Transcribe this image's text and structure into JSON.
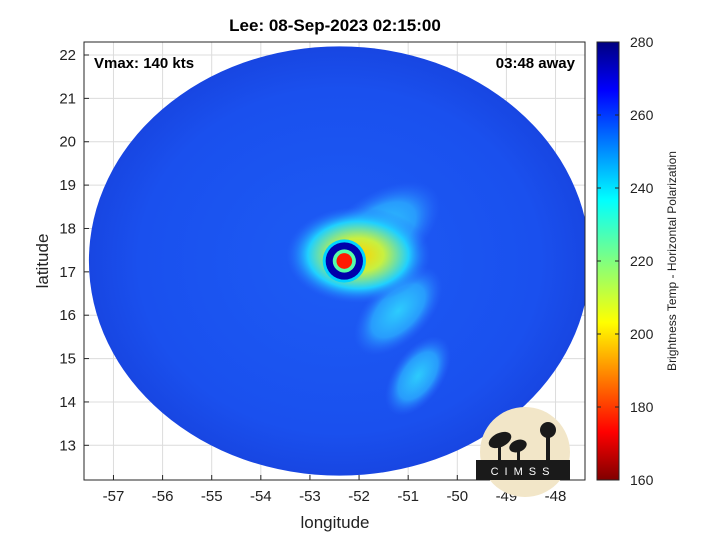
{
  "chart_data": {
    "type": "heatmap",
    "title": "Lee: 08-Sep-2023 02:15:00",
    "xlabel": "longitude",
    "ylabel": "latitude",
    "xlim": [
      -57.6,
      -47.4
    ],
    "ylim": [
      12.2,
      22.3
    ],
    "xticks": [
      -57,
      -56,
      -55,
      -54,
      -53,
      -52,
      -51,
      -50,
      -49,
      -48
    ],
    "yticks": [
      13,
      14,
      15,
      16,
      17,
      18,
      19,
      20,
      21,
      22
    ],
    "grid": true,
    "annotations": {
      "vmax": "Vmax: 140 kts",
      "time_away": "03:48 away"
    },
    "storm_center": {
      "lon": -52.3,
      "lat": 17.25
    },
    "eyewall_radius_deg": 0.38,
    "swath": {
      "center_lon": -52.4,
      "center_lat": 17.25,
      "radius_lon": 5.1,
      "radius_lat": 4.95
    },
    "colorbar": {
      "label": "Brightness Temp - Horizontal Polarization",
      "min": 160,
      "max": 280,
      "ticks": [
        160,
        180,
        200,
        220,
        240,
        260,
        280
      ],
      "colormap": "jet"
    },
    "background_value": 262,
    "features": [
      {
        "kind": "eyewall",
        "lon": -52.3,
        "lat": 17.25,
        "value": 165
      },
      {
        "kind": "eye",
        "lon": -52.3,
        "lat": 17.25,
        "value": 262
      },
      {
        "kind": "inner-ring",
        "lon": -52.3,
        "lat": 17.3,
        "value": 215
      },
      {
        "kind": "rainband",
        "lon": -51.6,
        "lat": 17.9,
        "value": 220
      },
      {
        "kind": "rainband",
        "lon": -51.2,
        "lat": 16.1,
        "value": 235
      },
      {
        "kind": "rainband",
        "lon": -50.8,
        "lat": 14.6,
        "value": 235
      }
    ]
  },
  "logo": {
    "text": "CIMSS"
  },
  "colors": {
    "background": "#ffffff",
    "grid": "#d9d9d9",
    "axis": "#262626"
  }
}
